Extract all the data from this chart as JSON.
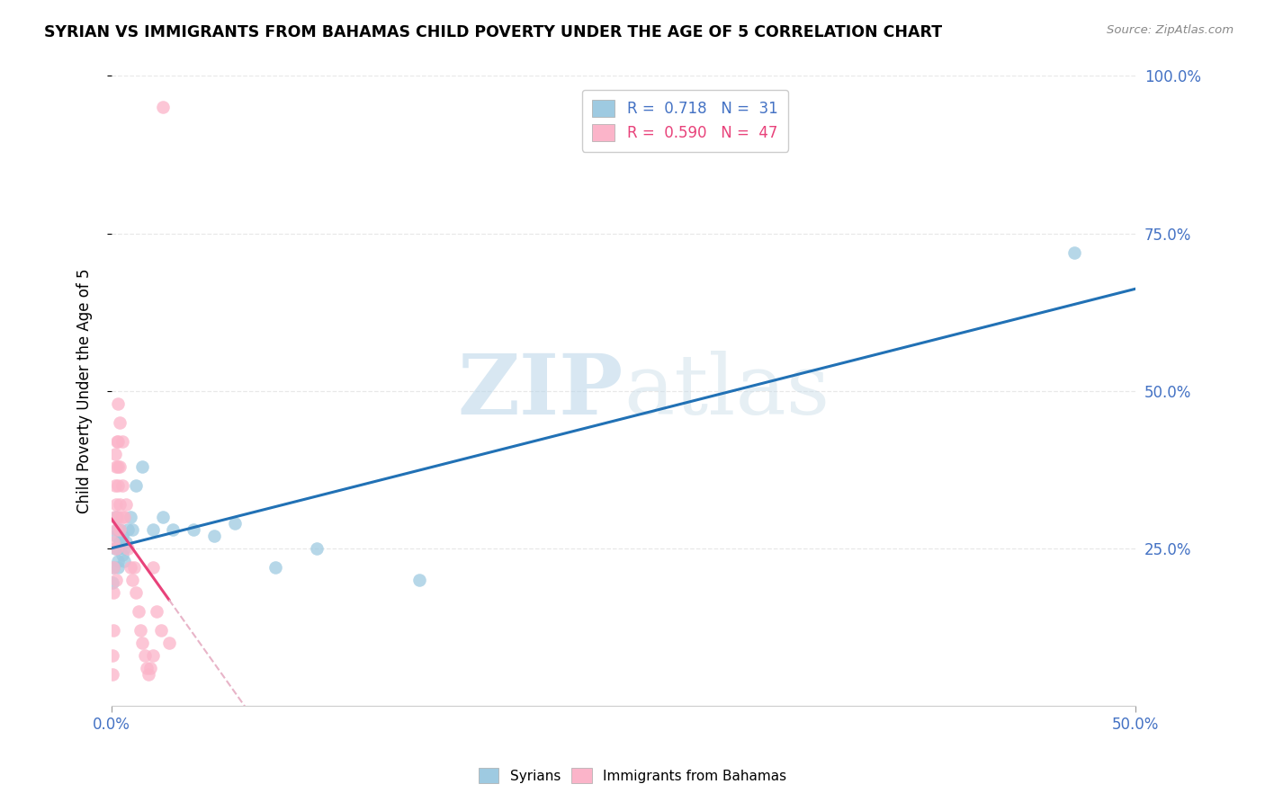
{
  "title": "SYRIAN VS IMMIGRANTS FROM BAHAMAS CHILD POVERTY UNDER THE AGE OF 5 CORRELATION CHART",
  "source": "Source: ZipAtlas.com",
  "ylabel": "Child Poverty Under the Age of 5",
  "xlim": [
    0.0,
    0.5
  ],
  "ylim": [
    0.0,
    1.0
  ],
  "xticks": [
    0.0,
    0.5
  ],
  "xtick_labels": [
    "0.0%",
    "50.0%"
  ],
  "yticks": [
    0.25,
    0.5,
    0.75,
    1.0
  ],
  "ytick_labels": [
    "25.0%",
    "50.0%",
    "75.0%",
    "100.0%"
  ],
  "legend_entries": [
    {
      "label": "R =  0.718   N =  31",
      "color": "#7ab8e8"
    },
    {
      "label": "R =  0.590   N =  47",
      "color": "#f78db8"
    }
  ],
  "syrians_x": [
    0.0005,
    0.001,
    0.0015,
    0.002,
    0.002,
    0.0025,
    0.003,
    0.003,
    0.003,
    0.004,
    0.004,
    0.005,
    0.005,
    0.006,
    0.006,
    0.007,
    0.008,
    0.009,
    0.01,
    0.012,
    0.015,
    0.02,
    0.025,
    0.03,
    0.04,
    0.05,
    0.06,
    0.08,
    0.1,
    0.15,
    0.47
  ],
  "syrians_y": [
    0.195,
    0.22,
    0.25,
    0.27,
    0.3,
    0.28,
    0.22,
    0.25,
    0.23,
    0.26,
    0.28,
    0.24,
    0.27,
    0.25,
    0.23,
    0.26,
    0.28,
    0.3,
    0.28,
    0.35,
    0.38,
    0.28,
    0.3,
    0.28,
    0.28,
    0.27,
    0.29,
    0.22,
    0.25,
    0.2,
    0.72
  ],
  "bahamas_x": [
    0.0003,
    0.0005,
    0.0007,
    0.001,
    0.001,
    0.001,
    0.0013,
    0.0015,
    0.0015,
    0.002,
    0.002,
    0.002,
    0.002,
    0.002,
    0.0025,
    0.003,
    0.003,
    0.003,
    0.003,
    0.003,
    0.004,
    0.004,
    0.004,
    0.004,
    0.005,
    0.005,
    0.005,
    0.006,
    0.007,
    0.008,
    0.009,
    0.01,
    0.011,
    0.012,
    0.013,
    0.014,
    0.015,
    0.016,
    0.017,
    0.018,
    0.019,
    0.02,
    0.02,
    0.022,
    0.024,
    0.025,
    0.028
  ],
  "bahamas_y": [
    0.05,
    0.08,
    0.12,
    0.18,
    0.22,
    0.26,
    0.3,
    0.35,
    0.4,
    0.2,
    0.25,
    0.28,
    0.32,
    0.38,
    0.42,
    0.3,
    0.35,
    0.38,
    0.42,
    0.48,
    0.28,
    0.32,
    0.38,
    0.45,
    0.3,
    0.35,
    0.42,
    0.3,
    0.32,
    0.25,
    0.22,
    0.2,
    0.22,
    0.18,
    0.15,
    0.12,
    0.1,
    0.08,
    0.06,
    0.05,
    0.06,
    0.08,
    0.22,
    0.15,
    0.12,
    0.95,
    0.1
  ],
  "syrian_line_color": "#2171b5",
  "bahamas_line_solid_color": "#e8427a",
  "bahamas_line_dashed_color": "#e8b4c8",
  "syrian_dot_color": "#9ecae1",
  "bahamas_dot_color": "#fbb4c9",
  "watermark_zip": "ZIP",
  "watermark_atlas": "atlas",
  "background_color": "#ffffff",
  "grid_color": "#e8e8e8"
}
